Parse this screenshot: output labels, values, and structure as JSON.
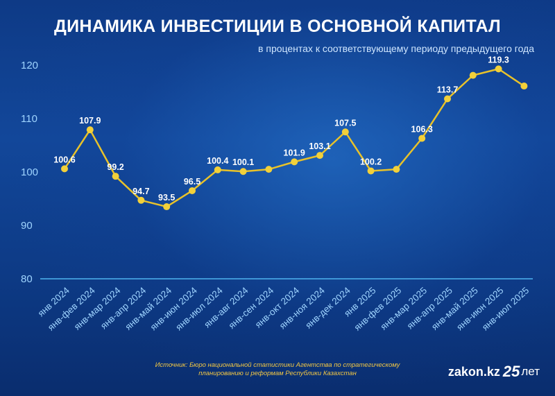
{
  "header": {
    "title": "ДИНАМИКА ИНВЕСТИЦИИ В ОСНОВНОЙ КАПИТАЛ",
    "subtitle": "в процентах к соответствующему периоду предыдущего года"
  },
  "chart_data": {
    "type": "line",
    "title": "ДИНАМИКА ИНВЕСТИЦИИ В ОСНОВНОЙ КАПИТАЛ",
    "subtitle": "в процентах к соответствующему периоду предыдущего года",
    "categories": [
      "янв 2024",
      "янв-фев 2024",
      "янв-мар 2024",
      "янв-апр 2024",
      "янв-май 2024",
      "янв-июн 2024",
      "янв-июл 2024",
      "янв-авг 2024",
      "янв-сен 2024",
      "янв-окт 2024",
      "янв-ноя 2024",
      "янв-дек 2024",
      "янв 2025",
      "янв-фев 2025",
      "янв-мар 2025",
      "янв-апр 2025",
      "янв-май 2025",
      "янв-июн 2025",
      "янв-июл 2025"
    ],
    "values": [
      100.6,
      107.9,
      99.2,
      94.7,
      93.5,
      96.5,
      100.4,
      100.1,
      100.5,
      101.9,
      103.1,
      107.5,
      100.2,
      100.5,
      106.3,
      113.7,
      118.1,
      119.3,
      116.1
    ],
    "data_labels": [
      "100.6",
      "107.9",
      "99.2",
      "94.7",
      "93.5",
      "96.5",
      "100.4",
      "100.1",
      "",
      "101.9",
      "103.1",
      "107.5",
      "100.2",
      "",
      "106.3",
      "113.7",
      "",
      "119.3",
      ""
    ],
    "y_ticks": [
      "80",
      "90",
      "100",
      "110",
      "120"
    ],
    "ylim": [
      80,
      122
    ],
    "grid": false,
    "legend": "none",
    "colors": {
      "line": "#e8c22a",
      "marker": "#f2d03a",
      "label": "#ffffff",
      "tick": "#9fd4ff",
      "baseline": "#4fb4f0"
    }
  },
  "footer": {
    "source_line1": "Источник: Бюро национальной статистики Агентства по стратегическому",
    "source_line2": "планированию и реформам Республики Казахстан",
    "logo_text": "zakon.kz",
    "logo_badge": "25",
    "logo_suffix": "лет"
  }
}
